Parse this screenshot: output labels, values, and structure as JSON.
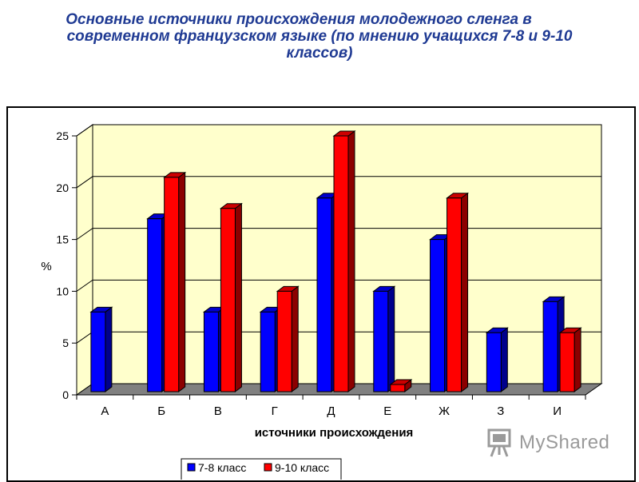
{
  "title_lines": [
    "Основные источники происхождения молодежного сленга в",
    "современном французском языке (по мнению учащихся 7-8 и 9-10",
    "классов)"
  ],
  "watermark": {
    "text": "MyShared",
    "icon": "presentation-board-icon"
  },
  "colors": {
    "title": "#1f3a93",
    "series_1": "#0000ff",
    "series_2": "#ff0000",
    "plot_bg": "#ffffcc",
    "floor": "#808080"
  },
  "chart_data": {
    "type": "bar",
    "categories": [
      "А",
      "Б",
      "В",
      "Г",
      "Д",
      "Е",
      "Ж",
      "З",
      "И"
    ],
    "series": [
      {
        "name": "7-8 класс",
        "values": [
          8,
          17,
          8,
          8,
          19,
          10,
          15,
          6,
          9
        ]
      },
      {
        "name": "9-10 класс",
        "values": [
          null,
          21,
          18,
          10,
          25,
          1,
          19,
          null,
          6
        ]
      }
    ],
    "xlabel": "источники происхождения",
    "ylabel": "%",
    "ylim": [
      0,
      25
    ],
    "yticks": [
      "0",
      "5",
      "10",
      "15",
      "20",
      "25"
    ],
    "grid": true,
    "legend": "bottom",
    "style": "3d-clustered"
  }
}
